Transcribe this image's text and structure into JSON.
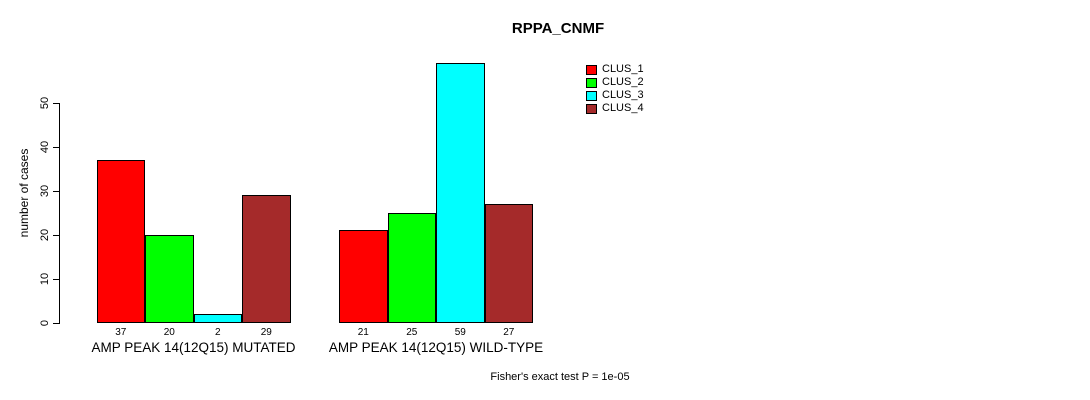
{
  "chart_data": {
    "type": "bar",
    "title": "RPPA_CNMF",
    "ylabel": "number of cases",
    "xlabel": "",
    "ylim": [
      0,
      59
    ],
    "yticks": [
      0,
      10,
      20,
      30,
      40,
      50
    ],
    "grid": false,
    "legend_position": "top-right",
    "bar_value_labels": true,
    "categories": [
      "AMP PEAK 14(12Q15) MUTATED",
      "AMP PEAK 14(12Q15) WILD-TYPE"
    ],
    "series": [
      {
        "name": "CLUS_1",
        "color": "#ff0000",
        "values": [
          37,
          21
        ]
      },
      {
        "name": "CLUS_2",
        "color": "#00ff00",
        "values": [
          20,
          25
        ]
      },
      {
        "name": "CLUS_3",
        "color": "#00ffff",
        "values": [
          2,
          59
        ]
      },
      {
        "name": "CLUS_4",
        "color": "#a52a2a",
        "values": [
          29,
          27
        ]
      }
    ],
    "annotation": "Fisher's exact test P = 1e-05",
    "colors": {
      "background": "#ffffff",
      "axis": "#000000",
      "bar_border": "#000000",
      "text": "#000000"
    }
  }
}
